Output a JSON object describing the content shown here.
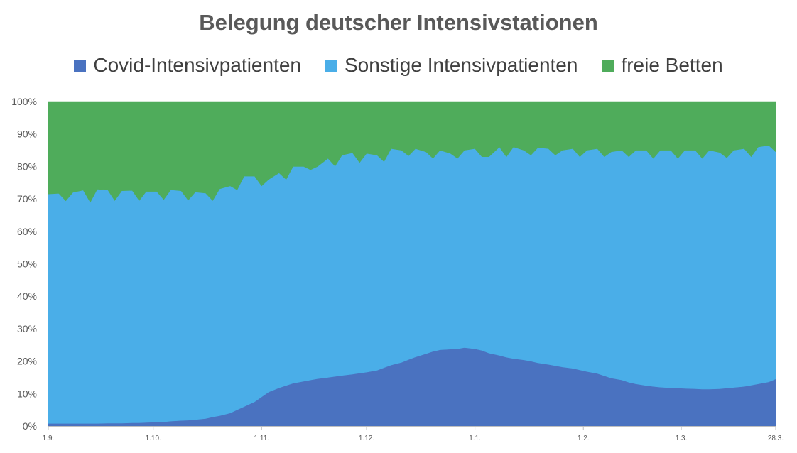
{
  "chart_data": {
    "type": "area",
    "stacked": "percent",
    "title": "Belegung deutscher Intensivstationen",
    "xlabel": "",
    "ylabel": "",
    "ylim": [
      0,
      100
    ],
    "y_ticks": [
      "0%",
      "10%",
      "20%",
      "30%",
      "40%",
      "50%",
      "60%",
      "70%",
      "80%",
      "90%",
      "100%"
    ],
    "x_ticks": [
      "1.9.",
      "1.10.",
      "1.11.",
      "1.12.",
      "1.1.",
      "1.2.",
      "1.3.",
      "28.3."
    ],
    "x_tick_days": [
      0,
      30,
      61,
      91,
      122,
      153,
      181,
      208
    ],
    "legend_position": "top",
    "x": [
      0,
      3,
      5,
      7,
      10,
      12,
      14,
      17,
      19,
      21,
      24,
      26,
      28,
      31,
      33,
      35,
      38,
      40,
      42,
      45,
      47,
      49,
      52,
      54,
      56,
      59,
      61,
      63,
      66,
      68,
      70,
      73,
      75,
      77,
      80,
      82,
      84,
      87,
      89,
      91,
      94,
      96,
      98,
      101,
      103,
      105,
      108,
      110,
      112,
      115,
      117,
      119,
      122,
      124,
      126,
      129,
      131,
      133,
      136,
      138,
      140,
      143,
      145,
      147,
      150,
      152,
      154,
      157,
      159,
      161,
      164,
      166,
      168,
      171,
      173,
      175,
      178,
      180,
      182,
      185,
      187,
      189,
      192,
      194,
      196,
      199,
      201,
      203,
      206,
      208
    ],
    "series": [
      {
        "name": "Covid-Intensivpatienten",
        "color": "#4a72c0",
        "values": [
          0.8,
          0.8,
          0.8,
          0.8,
          0.8,
          0.8,
          0.8,
          0.9,
          0.9,
          0.9,
          1.0,
          1.0,
          1.1,
          1.2,
          1.3,
          1.5,
          1.7,
          1.8,
          2.0,
          2.3,
          2.8,
          3.2,
          4.0,
          5.0,
          6.0,
          7.5,
          9.0,
          10.5,
          11.8,
          12.5,
          13.2,
          13.8,
          14.2,
          14.6,
          15.0,
          15.3,
          15.6,
          16.0,
          16.3,
          16.6,
          17.2,
          18.0,
          18.8,
          19.6,
          20.5,
          21.3,
          22.3,
          23.0,
          23.5,
          23.7,
          23.8,
          24.2,
          23.8,
          23.3,
          22.5,
          21.8,
          21.2,
          20.8,
          20.4,
          20.0,
          19.5,
          19.0,
          18.6,
          18.2,
          17.8,
          17.3,
          16.8,
          16.2,
          15.5,
          14.8,
          14.2,
          13.5,
          13.0,
          12.5,
          12.2,
          12.0,
          11.8,
          11.7,
          11.6,
          11.5,
          11.4,
          11.4,
          11.5,
          11.7,
          11.9,
          12.2,
          12.6,
          13.0,
          13.6,
          14.5
        ]
      },
      {
        "name": "Sonstige Intensivpatienten",
        "color": "#4aaee8",
        "values": [
          70.7,
          70.9,
          68.6,
          71.2,
          71.9,
          68.2,
          72.2,
          71.9,
          68.6,
          71.6,
          71.6,
          68.5,
          71.2,
          71.1,
          68.5,
          71.3,
          70.8,
          67.8,
          70.1,
          69.5,
          66.7,
          69.9,
          70.0,
          67.8,
          71.0,
          69.5,
          65.0,
          65.5,
          66.2,
          63.5,
          66.8,
          66.2,
          64.8,
          65.4,
          67.5,
          64.8,
          67.9,
          68.2,
          64.9,
          67.4,
          66.3,
          63.5,
          66.7,
          65.4,
          62.8,
          64.2,
          62.2,
          59.5,
          61.5,
          60.3,
          58.7,
          60.8,
          61.7,
          59.7,
          60.5,
          64.2,
          61.8,
          65.2,
          64.6,
          63.5,
          66.3,
          66.5,
          64.9,
          66.8,
          67.7,
          65.7,
          68.2,
          69.3,
          67.5,
          69.7,
          70.8,
          69.5,
          72.0,
          72.5,
          70.3,
          73.0,
          73.2,
          70.8,
          73.4,
          73.5,
          71.1,
          73.6,
          72.8,
          71.0,
          73.1,
          73.3,
          70.4,
          73.0,
          72.9,
          70.0
        ]
      },
      {
        "name": "freie Betten",
        "color": "#4fac5b",
        "values": [
          28.5,
          28.3,
          30.6,
          28.0,
          27.3,
          31.0,
          27.0,
          27.2,
          30.5,
          27.5,
          27.4,
          30.5,
          27.7,
          27.7,
          30.2,
          27.2,
          27.5,
          30.4,
          27.9,
          28.2,
          30.5,
          26.9,
          26.0,
          27.2,
          23.0,
          23.0,
          26.0,
          24.0,
          22.0,
          24.0,
          20.0,
          20.0,
          21.0,
          20.0,
          17.5,
          19.9,
          16.5,
          15.8,
          18.8,
          16.0,
          16.5,
          18.5,
          14.5,
          15.0,
          16.7,
          14.5,
          15.5,
          17.5,
          15.0,
          16.0,
          17.5,
          15.0,
          14.5,
          17.0,
          17.0,
          14.0,
          17.0,
          14.0,
          15.0,
          16.5,
          14.2,
          14.5,
          16.5,
          15.0,
          14.5,
          17.0,
          15.0,
          14.5,
          17.0,
          15.5,
          15.0,
          17.0,
          15.0,
          15.0,
          17.5,
          15.0,
          15.0,
          17.5,
          15.0,
          15.0,
          17.5,
          15.0,
          15.7,
          17.3,
          15.0,
          14.5,
          17.0,
          14.0,
          13.5,
          15.5
        ]
      }
    ]
  }
}
